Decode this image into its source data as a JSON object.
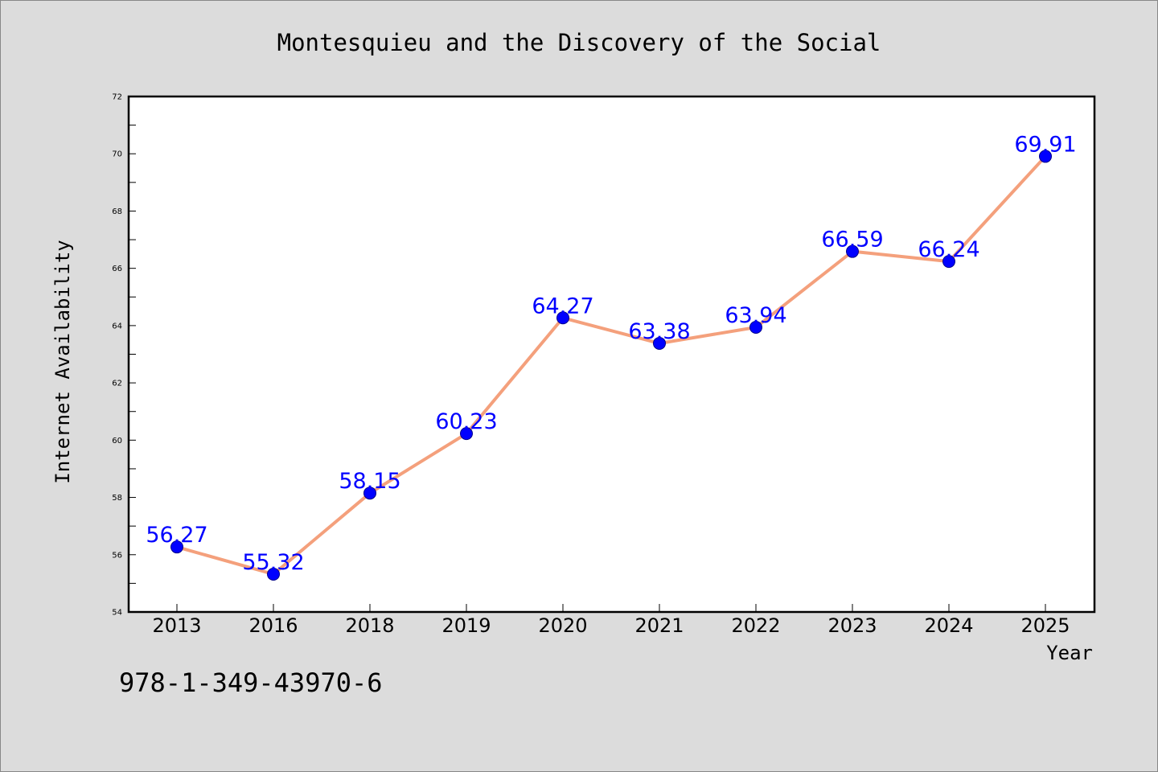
{
  "chart_data": {
    "type": "line",
    "title": "Montesquieu and the Discovery of the Social",
    "xlabel": "Year",
    "ylabel": "Internet Availability",
    "categories": [
      "2013",
      "2016",
      "2018",
      "2019",
      "2020",
      "2021",
      "2022",
      "2023",
      "2024",
      "2025"
    ],
    "series": [
      {
        "values": [
          56.27,
          55.32,
          58.15,
          60.23,
          64.27,
          63.38,
          63.94,
          66.59,
          66.24,
          69.91
        ],
        "data_labels": [
          "56.27",
          "55.32",
          "58.15",
          "60.23",
          "64.27",
          "63.38",
          "63.94",
          "66.59",
          "66.24",
          "69.91"
        ],
        "line_color": "#f4a07c",
        "marker_color": "#0000ff"
      }
    ],
    "ylim": [
      54,
      72
    ],
    "yticks": [
      "54",
      "56",
      "58",
      "60",
      "62",
      "64",
      "66",
      "68",
      "70",
      "72"
    ],
    "grid": false,
    "legend": "none"
  },
  "colors": {
    "background": "#dcdcdc",
    "plot_background": "#ffffff",
    "line": "#f4a07c",
    "marker": "#0000ff",
    "data_label": "#0000ff"
  },
  "footer_text": "978-1-349-43970-6"
}
